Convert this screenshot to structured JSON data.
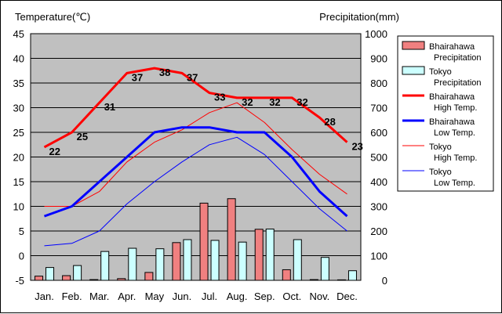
{
  "chart_data": {
    "type": "bar+line",
    "left_axis_label": "Temperature(℃)",
    "right_axis_label": "Precipitation(mm)",
    "categories": [
      "Jan.",
      "Feb.",
      "Mar.",
      "Apr.",
      "May",
      "Jun.",
      "Jul.",
      "Aug.",
      "Sep.",
      "Oct.",
      "Nov.",
      "Dec."
    ],
    "left_ylim": [
      -5,
      45
    ],
    "left_ticks": [
      "45",
      "40",
      "35",
      "30",
      "25",
      "20",
      "15",
      "10",
      "5",
      "0",
      "-5"
    ],
    "right_ylim": [
      0,
      1000
    ],
    "right_ticks": [
      "1000",
      "900",
      "800",
      "700",
      "600",
      "500",
      "400",
      "300",
      "200",
      "100",
      "0"
    ],
    "grid": "horizontal",
    "legend_position": "right",
    "bar_series": [
      {
        "name": "Bhairahawa Precipitation",
        "name_lines": [
          "Bhairahawa",
          "Precipitation"
        ],
        "color": "#f08080",
        "values": [
          17,
          19,
          3,
          7,
          32,
          153,
          313,
          331,
          207,
          43,
          3,
          2
        ]
      },
      {
        "name": "Tokyo Precipitation",
        "name_lines": [
          "Tokyo",
          "Precipitation"
        ],
        "color": "#ccffff",
        "values": [
          52,
          60,
          117,
          130,
          128,
          165,
          162,
          155,
          208,
          165,
          93,
          39
        ]
      }
    ],
    "line_series": [
      {
        "name": "Bhairahawa High Temp.",
        "name_lines": [
          "Bhairahawa",
          "High Temp."
        ],
        "color": "#ff0000",
        "width": 3,
        "values": [
          22,
          25,
          31,
          37,
          38,
          37,
          33,
          32,
          32,
          32,
          28,
          23
        ]
      },
      {
        "name": "Bhairahawa Low Temp.",
        "name_lines": [
          "Bhairahawa",
          "Low Temp."
        ],
        "color": "#0000ff",
        "width": 3,
        "values": [
          8,
          10,
          15,
          20,
          25,
          26,
          26,
          25,
          25,
          20,
          13,
          8
        ]
      },
      {
        "name": "Tokyo High Temp.",
        "name_lines": [
          "Tokyo",
          "High Temp."
        ],
        "color": "#ff0000",
        "width": 1,
        "values": [
          10,
          10,
          13,
          19,
          23,
          25.5,
          29,
          31,
          27,
          21.5,
          16.5,
          12.5
        ]
      },
      {
        "name": "Tokyo Low Temp.",
        "name_lines": [
          "Tokyo",
          "Low Temp."
        ],
        "color": "#0000ff",
        "width": 1,
        "values": [
          2,
          2.5,
          5,
          10.5,
          15,
          19,
          22.5,
          24,
          20.5,
          15,
          9.5,
          5
        ]
      }
    ],
    "data_labels": [
      "22",
      "25",
      "31",
      "37",
      "38",
      "37",
      "33",
      "32",
      "32",
      "32",
      "28",
      "23"
    ]
  }
}
